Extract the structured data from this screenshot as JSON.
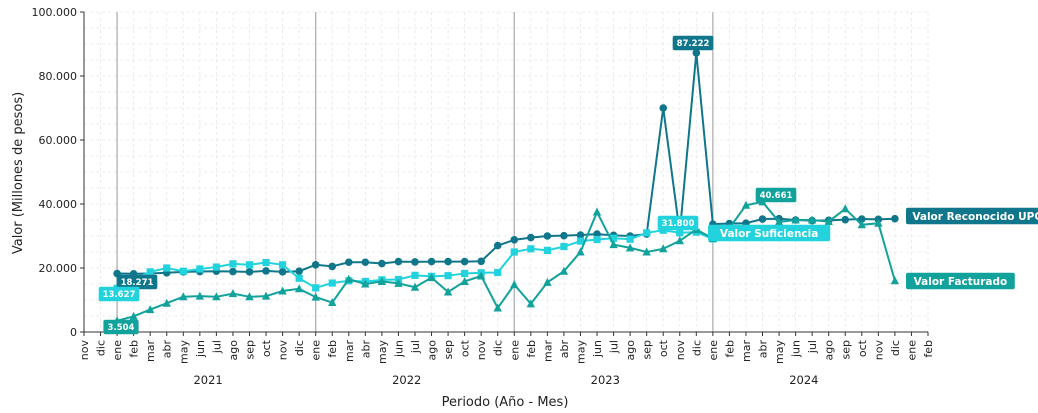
{
  "chart_data": {
    "type": "line",
    "xlabel": "Periodo (Año - Mes)",
    "ylabel": "Valor (Millones de pesos)",
    "ylim": [
      0,
      100000
    ],
    "yticks": [
      0,
      20000,
      40000,
      60000,
      80000,
      100000
    ],
    "ytick_labels": [
      "0",
      "20.000",
      "40.000",
      "60.000",
      "80.000",
      "100.000"
    ],
    "month_ticks": [
      "nov",
      "dic",
      "ene",
      "feb",
      "mar",
      "abr",
      "may",
      "jun",
      "jul",
      "ago",
      "sep",
      "oct",
      "nov",
      "dic",
      "ene",
      "feb",
      "mar",
      "abr",
      "may",
      "jun",
      "jul",
      "ago",
      "sep",
      "oct",
      "nov",
      "dic",
      "ene",
      "feb",
      "mar",
      "abr",
      "may",
      "jun",
      "jul",
      "ago",
      "sep",
      "oct",
      "nov",
      "dic",
      "ene",
      "feb",
      "mar",
      "abr",
      "may",
      "jun",
      "jul",
      "ago",
      "sep",
      "oct",
      "nov",
      "dic",
      "ene",
      "feb"
    ],
    "years": [
      "2021",
      "2022",
      "2023",
      "2024"
    ],
    "grid": true,
    "series": [
      {
        "name": "Valor Reconocido UPC",
        "color": "#10768b",
        "marker": "circle",
        "values": [
          18271,
          18200,
          18300,
          18500,
          18800,
          18900,
          19000,
          18900,
          18800,
          19100,
          18800,
          19000,
          21000,
          20500,
          21800,
          21800,
          21400,
          22000,
          21900,
          22000,
          22000,
          22000,
          22100,
          27000,
          28800,
          29500,
          30000,
          30100,
          30300,
          30600,
          30200,
          30000,
          30600,
          70000,
          31000,
          87222,
          33700,
          33900,
          34000,
          35300,
          35400,
          35000,
          34800,
          34900,
          35100,
          35300,
          35200,
          35400
        ]
      },
      {
        "name": "Valor Suficiencia",
        "color": "#22d3de",
        "marker": "square",
        "values": [
          13627,
          16500,
          18800,
          20000,
          19000,
          19700,
          20300,
          21300,
          21000,
          21700,
          21000,
          16800,
          13800,
          15300,
          16000,
          15800,
          16300,
          16400,
          17700,
          17400,
          17600,
          18300,
          18500,
          18600,
          25000,
          26000,
          25500,
          26700,
          28400,
          28900,
          29300,
          29000,
          31000,
          31800,
          31000,
          31200,
          29100,
          30000,
          null,
          null,
          null,
          null,
          null,
          null,
          null,
          null,
          null,
          null
        ]
      },
      {
        "name": "Valor Facturado",
        "color": "#12a29c",
        "marker": "triangle",
        "values": [
          3504,
          4900,
          7000,
          9000,
          11000,
          11200,
          11000,
          12000,
          11000,
          11200,
          12800,
          13500,
          10900,
          9200,
          16500,
          15000,
          15800,
          15200,
          14000,
          17000,
          12500,
          15800,
          17500,
          7500,
          14800,
          8800,
          15500,
          19000,
          25000,
          37500,
          27300,
          26300,
          25000,
          26000,
          28500,
          32000,
          29200,
          32500,
          39600,
          40661,
          34400,
          35000,
          35000,
          34500,
          38500,
          33500,
          34000,
          16000
        ]
      }
    ],
    "annotations": [
      {
        "text": "87.222"
      },
      {
        "text": "40.661"
      },
      {
        "text": "31.800"
      },
      {
        "text": "18.271"
      },
      {
        "text": "13.627"
      },
      {
        "text": "3.504"
      }
    ]
  }
}
